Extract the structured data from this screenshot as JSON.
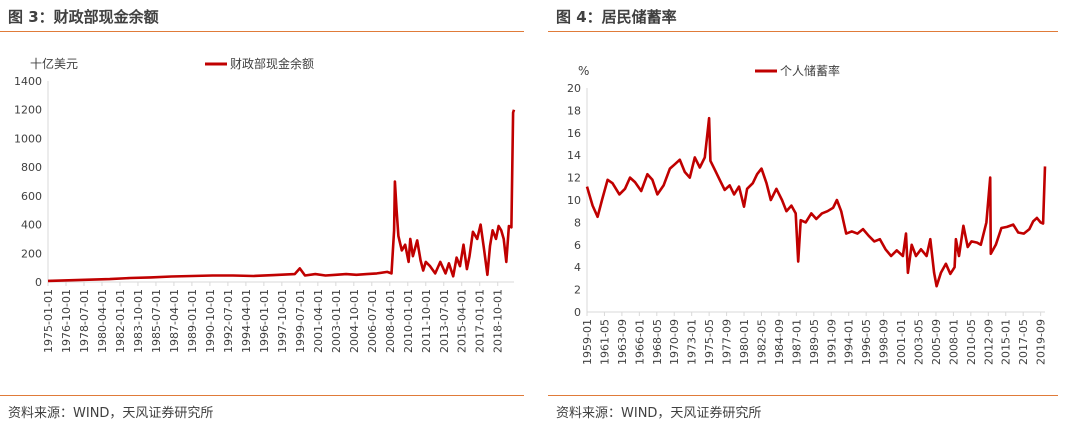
{
  "figures": [
    {
      "title": "图 3：财政部现金余额",
      "source": "资料来源：WIND，天风证券研究所"
    },
    {
      "title": "图 4：居民储蓄率",
      "source": "资料来源：WIND，天风证券研究所"
    }
  ],
  "colors": {
    "series": "#c00000",
    "accent_rule": "#e07b39",
    "axis": "#d9d9d9"
  },
  "chart_data": [
    {
      "type": "line",
      "ylabel": "十亿美元",
      "ylim": [
        0,
        1400
      ],
      "yticks": [
        0,
        200,
        400,
        600,
        800,
        1000,
        1200,
        1400
      ],
      "x_range": [
        "1975-01",
        "2020-05"
      ],
      "xticks": [
        "1975-01-01",
        "1976-10-01",
        "1978-07-01",
        "1980-04-01",
        "1982-01-01",
        "1983-10-01",
        "1985-07-01",
        "1987-04-01",
        "1989-01-01",
        "1990-10-01",
        "1992-07-01",
        "1994-04-01",
        "1996-01-01",
        "1997-10-01",
        "1999-07-01",
        "2001-04-01",
        "2003-01-01",
        "2004-10-01",
        "2006-07-01",
        "2008-04-01",
        "2010-01-01",
        "2011-10-01",
        "2013-07-01",
        "2015-04-01",
        "2017-01-01",
        "2018-10-01"
      ],
      "legend_position": "top-center",
      "series": [
        {
          "name": "财政部现金余额",
          "points": [
            [
              "1975-01",
              8
            ],
            [
              "1977-01",
              12
            ],
            [
              "1979-01",
              16
            ],
            [
              "1981-01",
              20
            ],
            [
              "1983-01",
              28
            ],
            [
              "1985-01",
              32
            ],
            [
              "1987-01",
              38
            ],
            [
              "1989-01",
              42
            ],
            [
              "1991-01",
              45
            ],
            [
              "1993-01",
              45
            ],
            [
              "1995-01",
              42
            ],
            [
              "1997-01",
              48
            ],
            [
              "1999-01",
              55
            ],
            [
              "1999-07",
              95
            ],
            [
              "2000-01",
              45
            ],
            [
              "2001-01",
              55
            ],
            [
              "2002-01",
              45
            ],
            [
              "2003-01",
              50
            ],
            [
              "2004-01",
              55
            ],
            [
              "2005-01",
              50
            ],
            [
              "2006-01",
              55
            ],
            [
              "2007-01",
              60
            ],
            [
              "2008-01",
              70
            ],
            [
              "2008-06",
              60
            ],
            [
              "2008-09",
              360
            ],
            [
              "2008-10",
              700
            ],
            [
              "2008-12",
              500
            ],
            [
              "2009-02",
              320
            ],
            [
              "2009-06",
              220
            ],
            [
              "2009-10",
              260
            ],
            [
              "2010-02",
              140
            ],
            [
              "2010-04",
              300
            ],
            [
              "2010-07",
              180
            ],
            [
              "2010-12",
              290
            ],
            [
              "2011-04",
              150
            ],
            [
              "2011-07",
              80
            ],
            [
              "2011-10",
              140
            ],
            [
              "2012-03",
              110
            ],
            [
              "2012-09",
              60
            ],
            [
              "2013-03",
              140
            ],
            [
              "2013-09",
              60
            ],
            [
              "2014-01",
              130
            ],
            [
              "2014-06",
              40
            ],
            [
              "2014-10",
              170
            ],
            [
              "2015-02",
              110
            ],
            [
              "2015-06",
              260
            ],
            [
              "2015-10",
              90
            ],
            [
              "2016-01",
              180
            ],
            [
              "2016-05",
              350
            ],
            [
              "2016-10",
              300
            ],
            [
              "2017-02",
              400
            ],
            [
              "2017-06",
              230
            ],
            [
              "2017-10",
              50
            ],
            [
              "2018-01",
              250
            ],
            [
              "2018-04",
              360
            ],
            [
              "2018-08",
              300
            ],
            [
              "2018-11",
              390
            ],
            [
              "2019-02",
              360
            ],
            [
              "2019-05",
              300
            ],
            [
              "2019-08",
              140
            ],
            [
              "2019-11",
              390
            ],
            [
              "2020-02",
              380
            ],
            [
              "2020-04",
              1180
            ],
            [
              "2020-05",
              1200
            ]
          ]
        }
      ]
    },
    {
      "type": "line",
      "ylabel": "%",
      "ylim": [
        0,
        20
      ],
      "yticks": [
        0,
        2,
        4,
        6,
        8,
        10,
        12,
        14,
        16,
        18,
        20
      ],
      "x_range": [
        "1959-01",
        "2020-04"
      ],
      "xticks": [
        "1959-01",
        "1961-05",
        "1963-09",
        "1966-01",
        "1968-05",
        "1970-09",
        "1973-01",
        "1975-05",
        "1977-09",
        "1980-01",
        "1982-05",
        "1984-09",
        "1987-01",
        "1989-05",
        "1991-09",
        "1994-01",
        "1996-05",
        "1998-09",
        "2001-01",
        "2003-05",
        "2005-09",
        "2008-01",
        "2010-05",
        "2012-09",
        "2015-01",
        "2017-05",
        "2019-09"
      ],
      "legend_position": "top-center",
      "series": [
        {
          "name": "个人储蓄率",
          "points": [
            [
              "1959-01",
              11.2
            ],
            [
              "1959-10",
              9.5
            ],
            [
              "1960-06",
              8.5
            ],
            [
              "1961-01",
              10.0
            ],
            [
              "1961-10",
              11.8
            ],
            [
              "1962-06",
              11.5
            ],
            [
              "1963-05",
              10.5
            ],
            [
              "1964-02",
              11.0
            ],
            [
              "1964-10",
              12.0
            ],
            [
              "1965-06",
              11.6
            ],
            [
              "1966-04",
              10.8
            ],
            [
              "1967-02",
              12.3
            ],
            [
              "1967-10",
              11.8
            ],
            [
              "1968-06",
              10.5
            ],
            [
              "1969-04",
              11.3
            ],
            [
              "1970-02",
              12.8
            ],
            [
              "1970-10",
              13.2
            ],
            [
              "1971-06",
              13.6
            ],
            [
              "1972-02",
              12.5
            ],
            [
              "1972-10",
              12.0
            ],
            [
              "1973-06",
              13.8
            ],
            [
              "1974-02",
              12.9
            ],
            [
              "1974-10",
              13.8
            ],
            [
              "1975-05",
              17.3
            ],
            [
              "1975-07",
              13.5
            ],
            [
              "1976-03",
              12.6
            ],
            [
              "1976-10",
              11.8
            ],
            [
              "1977-06",
              10.9
            ],
            [
              "1978-02",
              11.3
            ],
            [
              "1978-09",
              10.5
            ],
            [
              "1979-05",
              11.2
            ],
            [
              "1980-01",
              9.4
            ],
            [
              "1980-06",
              11.0
            ],
            [
              "1981-03",
              11.5
            ],
            [
              "1981-10",
              12.3
            ],
            [
              "1982-05",
              12.8
            ],
            [
              "1983-01",
              11.5
            ],
            [
              "1983-08",
              10.0
            ],
            [
              "1984-05",
              11.0
            ],
            [
              "1985-02",
              10.0
            ],
            [
              "1985-09",
              9.0
            ],
            [
              "1986-05",
              9.5
            ],
            [
              "1986-12",
              8.8
            ],
            [
              "1987-04",
              4.5
            ],
            [
              "1987-08",
              8.2
            ],
            [
              "1988-04",
              8.0
            ],
            [
              "1989-01",
              8.8
            ],
            [
              "1989-09",
              8.3
            ],
            [
              "1990-06",
              8.8
            ],
            [
              "1991-03",
              9.0
            ],
            [
              "1991-12",
              9.3
            ],
            [
              "1992-06",
              10.0
            ],
            [
              "1993-01",
              9.0
            ],
            [
              "1993-09",
              7.0
            ],
            [
              "1994-06",
              7.2
            ],
            [
              "1995-03",
              7.0
            ],
            [
              "1995-12",
              7.4
            ],
            [
              "1996-09",
              6.8
            ],
            [
              "1997-06",
              6.3
            ],
            [
              "1998-03",
              6.5
            ],
            [
              "1998-12",
              5.6
            ],
            [
              "1999-09",
              5.0
            ],
            [
              "2000-06",
              5.5
            ],
            [
              "2001-04",
              5.0
            ],
            [
              "2001-09",
              7.0
            ],
            [
              "2001-12",
              3.5
            ],
            [
              "2002-06",
              6.0
            ],
            [
              "2003-01",
              5.0
            ],
            [
              "2003-09",
              5.6
            ],
            [
              "2004-06",
              5.0
            ],
            [
              "2004-12",
              6.5
            ],
            [
              "2005-06",
              3.5
            ],
            [
              "2005-10",
              2.3
            ],
            [
              "2006-05",
              3.5
            ],
            [
              "2007-01",
              4.3
            ],
            [
              "2007-08",
              3.4
            ],
            [
              "2008-03",
              4.0
            ],
            [
              "2008-05",
              6.5
            ],
            [
              "2008-10",
              5.0
            ],
            [
              "2009-05",
              7.7
            ],
            [
              "2009-12",
              5.8
            ],
            [
              "2010-06",
              6.3
            ],
            [
              "2011-03",
              6.2
            ],
            [
              "2011-09",
              6.0
            ],
            [
              "2012-06",
              8.0
            ],
            [
              "2012-12",
              12.0
            ],
            [
              "2013-01",
              5.2
            ],
            [
              "2013-09",
              6.0
            ],
            [
              "2014-06",
              7.5
            ],
            [
              "2015-03",
              7.6
            ],
            [
              "2016-01",
              7.8
            ],
            [
              "2016-09",
              7.1
            ],
            [
              "2017-06",
              7.0
            ],
            [
              "2018-03",
              7.4
            ],
            [
              "2018-09",
              8.1
            ],
            [
              "2019-03",
              8.4
            ],
            [
              "2019-09",
              8.0
            ],
            [
              "2020-01",
              7.9
            ],
            [
              "2020-04",
              13.0
            ]
          ]
        }
      ]
    }
  ]
}
